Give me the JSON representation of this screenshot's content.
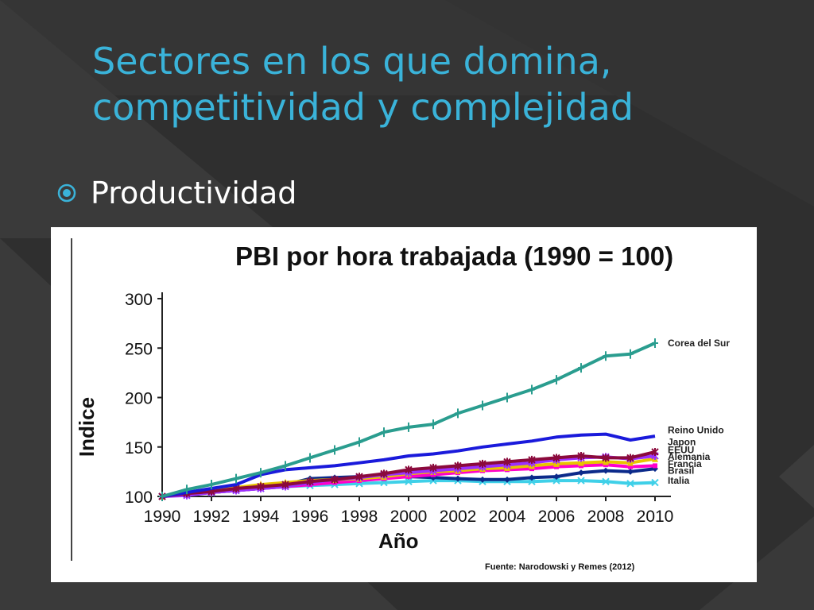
{
  "slide": {
    "title": "Sectores en los que domina, competitividad y complejidad",
    "bullet_icon": "circled-dot-icon",
    "bullet_text": "Productividad"
  },
  "theme": {
    "background": "#2f2f2f",
    "title_color": "#3ab3d9",
    "text_color": "#ffffff"
  },
  "chart_data": {
    "type": "line",
    "title": "PBI por hora trabajada (1990 = 100)",
    "xlabel": "Año",
    "ylabel": "Indice",
    "source": "Fuente: Narodowski y Remes (2012)",
    "xlim": [
      1990,
      2010
    ],
    "ylim": [
      100,
      300
    ],
    "xticks": [
      "1990",
      "1992",
      "1994",
      "1996",
      "1998",
      "2000",
      "2002",
      "2004",
      "2006",
      "2008",
      "2010"
    ],
    "yticks": [
      "100",
      "150",
      "200",
      "250",
      "300"
    ],
    "grid": false,
    "legend": "inline labels at line ends",
    "x": [
      1990,
      1991,
      1992,
      1993,
      1994,
      1995,
      1996,
      1997,
      1998,
      1999,
      2000,
      2001,
      2002,
      2003,
      2004,
      2005,
      2006,
      2007,
      2008,
      2009,
      2010
    ],
    "series": [
      {
        "name": "Corea del Sur",
        "color": "#2a9d8f",
        "marker": "plus",
        "values": [
          100,
          107,
          112,
          118,
          124,
          131,
          139,
          147,
          155,
          165,
          170,
          173,
          184,
          192,
          200,
          208,
          218,
          230,
          242,
          244,
          255
        ]
      },
      {
        "name": "Reino Unido",
        "color": "#1a1adb",
        "marker": "none",
        "values": [
          100,
          104,
          108,
          112,
          122,
          127,
          129,
          131,
          134,
          137,
          141,
          143,
          146,
          150,
          153,
          156,
          160,
          162,
          163,
          157,
          161
        ]
      },
      {
        "name": "Japon",
        "color": "#8b0a3c",
        "marker": "star",
        "values": [
          100,
          103,
          105,
          108,
          110,
          112,
          115,
          117,
          120,
          123,
          127,
          129,
          131,
          133,
          135,
          137,
          139,
          141,
          139,
          139,
          145
        ]
      },
      {
        "name": "EEUU",
        "color": "#9b30ff",
        "marker": "star",
        "values": [
          100,
          101,
          104,
          106,
          108,
          110,
          114,
          117,
          119,
          122,
          124,
          126,
          128,
          130,
          132,
          134,
          137,
          139,
          140,
          138,
          141
        ]
      },
      {
        "name": "Alemania",
        "color": "#e8c400",
        "marker": "triangle",
        "values": [
          100,
          104,
          107,
          109,
          112,
          114,
          116,
          117,
          118,
          120,
          123,
          125,
          126,
          128,
          129,
          131,
          133,
          134,
          135,
          134,
          138
        ]
      },
      {
        "name": "Francia",
        "color": "#ff00cc",
        "marker": "square",
        "values": [
          100,
          102,
          104,
          106,
          108,
          110,
          112,
          114,
          116,
          118,
          120,
          122,
          124,
          126,
          127,
          128,
          130,
          131,
          132,
          130,
          131
        ]
      },
      {
        "name": "Brasil",
        "color": "#0b2a8a",
        "marker": "diamond",
        "values": [
          100,
          102,
          104,
          106,
          108,
          112,
          118,
          119,
          120,
          121,
          120,
          119,
          118,
          117,
          117,
          119,
          120,
          124,
          126,
          125,
          128
        ]
      },
      {
        "name": "Italia",
        "color": "#3fd0e8",
        "marker": "x",
        "values": [
          100,
          102,
          104,
          106,
          108,
          110,
          111,
          112,
          113,
          114,
          115,
          116,
          116,
          115,
          115,
          115,
          116,
          116,
          115,
          113,
          114
        ]
      }
    ],
    "series_labels": [
      {
        "text": "Corea del Sur",
        "y": 255
      },
      {
        "text": "Reino Unido",
        "y": 167
      },
      {
        "text": "Japon",
        "y": 155
      },
      {
        "text": "EEUU",
        "y": 147
      },
      {
        "text": "Alemania",
        "y": 140
      },
      {
        "text": "Francia",
        "y": 133
      },
      {
        "text": "Brasil",
        "y": 126
      },
      {
        "text": "Italia",
        "y": 116
      }
    ]
  }
}
